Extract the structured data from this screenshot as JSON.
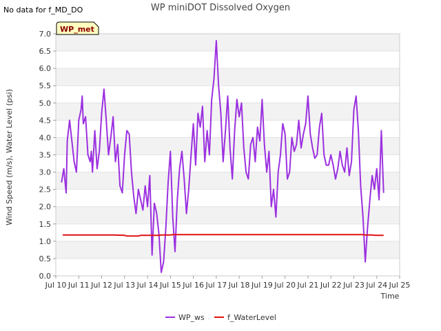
{
  "nodata_note": "No data for f_MD_DO",
  "badge": "WP_met",
  "chart_data": {
    "type": "line",
    "title": "WP miniDOT Dissolved Oxygen",
    "xlabel": "Time",
    "ylabel": "Wind Speed (m/s), Water Level (psi)",
    "xlim": [
      10,
      25
    ],
    "ylim": [
      0.0,
      7.0
    ],
    "xticks": [
      "Jul 10",
      "Jul 11",
      "Jul 12",
      "Jul 13",
      "Jul 14",
      "Jul 15",
      "Jul 16",
      "Jul 17",
      "Jul 18",
      "Jul 19",
      "Jul 20",
      "Jul 21",
      "Jul 22",
      "Jul 23",
      "Jul 24",
      "Jul 25"
    ],
    "yticks": [
      "0.0",
      "0.5",
      "1.0",
      "1.5",
      "2.0",
      "2.5",
      "3.0",
      "3.5",
      "4.0",
      "4.5",
      "5.0",
      "5.5",
      "6.0",
      "6.5",
      "7.0"
    ],
    "grid": "horizontal bands",
    "legend_position": "bottom",
    "series": [
      {
        "name": "WP_ws",
        "color": "#9b30e0",
        "x": [
          10.25,
          10.35,
          10.45,
          10.5,
          10.6,
          10.7,
          10.8,
          10.9,
          11.0,
          11.1,
          11.15,
          11.2,
          11.3,
          11.4,
          11.5,
          11.55,
          11.6,
          11.7,
          11.8,
          11.9,
          12.0,
          12.1,
          12.2,
          12.3,
          12.4,
          12.5,
          12.6,
          12.7,
          12.8,
          12.9,
          13.0,
          13.1,
          13.2,
          13.3,
          13.4,
          13.5,
          13.6,
          13.7,
          13.8,
          13.9,
          14.0,
          14.1,
          14.2,
          14.3,
          14.4,
          14.5,
          14.6,
          14.7,
          14.8,
          14.9,
          15.0,
          15.1,
          15.2,
          15.3,
          15.4,
          15.5,
          15.6,
          15.7,
          15.8,
          15.9,
          16.0,
          16.1,
          16.2,
          16.3,
          16.4,
          16.5,
          16.6,
          16.7,
          16.8,
          16.9,
          17.0,
          17.1,
          17.2,
          17.3,
          17.4,
          17.5,
          17.6,
          17.7,
          17.8,
          17.9,
          18.0,
          18.1,
          18.2,
          18.3,
          18.4,
          18.5,
          18.6,
          18.7,
          18.8,
          18.9,
          19.0,
          19.1,
          19.2,
          19.3,
          19.4,
          19.5,
          19.6,
          19.7,
          19.8,
          19.9,
          20.0,
          20.1,
          20.2,
          20.3,
          20.4,
          20.5,
          20.6,
          20.7,
          20.8,
          20.9,
          21.0,
          21.1,
          21.2,
          21.3,
          21.4,
          21.5,
          21.6,
          21.7,
          21.8,
          21.9,
          22.0,
          22.1,
          22.2,
          22.3,
          22.4,
          22.5,
          22.6,
          22.7,
          22.8,
          22.9,
          23.0,
          23.1,
          23.2,
          23.3,
          23.4,
          23.5,
          23.6,
          23.7,
          23.8,
          23.9,
          24.0,
          24.1,
          24.2,
          24.3
        ],
        "values": [
          2.7,
          3.1,
          2.4,
          3.9,
          4.5,
          3.9,
          3.3,
          3.0,
          4.5,
          4.8,
          5.2,
          4.4,
          4.6,
          3.5,
          3.3,
          3.6,
          3.0,
          4.2,
          3.1,
          3.6,
          4.7,
          5.4,
          4.5,
          3.5,
          4.0,
          4.6,
          3.3,
          3.8,
          2.6,
          2.4,
          3.5,
          4.2,
          4.1,
          3.0,
          2.3,
          1.8,
          2.5,
          2.2,
          1.9,
          2.6,
          2.0,
          2.9,
          0.6,
          2.1,
          1.8,
          1.2,
          0.1,
          0.4,
          1.4,
          2.7,
          3.6,
          1.7,
          0.7,
          2.2,
          3.1,
          3.6,
          2.8,
          1.8,
          2.5,
          3.5,
          4.4,
          3.2,
          4.7,
          4.3,
          4.9,
          3.3,
          4.2,
          3.5,
          5.1,
          5.7,
          6.8,
          5.5,
          4.7,
          3.3,
          4.2,
          5.2,
          3.7,
          2.8,
          4.2,
          5.1,
          4.6,
          5.0,
          3.7,
          3.0,
          2.8,
          3.8,
          4.0,
          3.3,
          4.3,
          3.9,
          5.1,
          3.8,
          3.0,
          3.6,
          2.0,
          2.5,
          1.7,
          3.0,
          3.5,
          4.4,
          4.1,
          2.8,
          3.0,
          4.0,
          3.6,
          3.8,
          4.5,
          3.7,
          4.1,
          4.4,
          5.2,
          4.1,
          3.7,
          3.4,
          3.5,
          4.3,
          4.7,
          3.5,
          3.2,
          3.2,
          3.5,
          3.2,
          2.8,
          3.1,
          3.6,
          3.2,
          3.0,
          3.7,
          2.9,
          3.3,
          4.8,
          5.2,
          4.2,
          2.6,
          1.7,
          0.4,
          1.4,
          2.2,
          2.9,
          2.5,
          3.1,
          2.2,
          4.2,
          2.4
        ]
      },
      {
        "name": "f_WaterLevel",
        "color": "#e01010",
        "x": [
          10.3,
          11.5,
          12.5,
          13.0,
          13.1,
          13.6,
          13.7,
          14.5,
          14.6,
          15.0,
          15.1,
          15.5,
          15.6,
          16.5,
          17.0,
          18.0,
          19.0,
          20.0,
          21.0,
          22.0,
          23.0,
          23.4,
          23.5,
          23.8,
          23.9,
          24.3
        ],
        "values": [
          1.18,
          1.18,
          1.18,
          1.17,
          1.15,
          1.15,
          1.17,
          1.17,
          1.18,
          1.18,
          1.19,
          1.19,
          1.19,
          1.19,
          1.19,
          1.19,
          1.19,
          1.19,
          1.19,
          1.19,
          1.19,
          1.19,
          1.18,
          1.18,
          1.17,
          1.17
        ]
      }
    ]
  }
}
